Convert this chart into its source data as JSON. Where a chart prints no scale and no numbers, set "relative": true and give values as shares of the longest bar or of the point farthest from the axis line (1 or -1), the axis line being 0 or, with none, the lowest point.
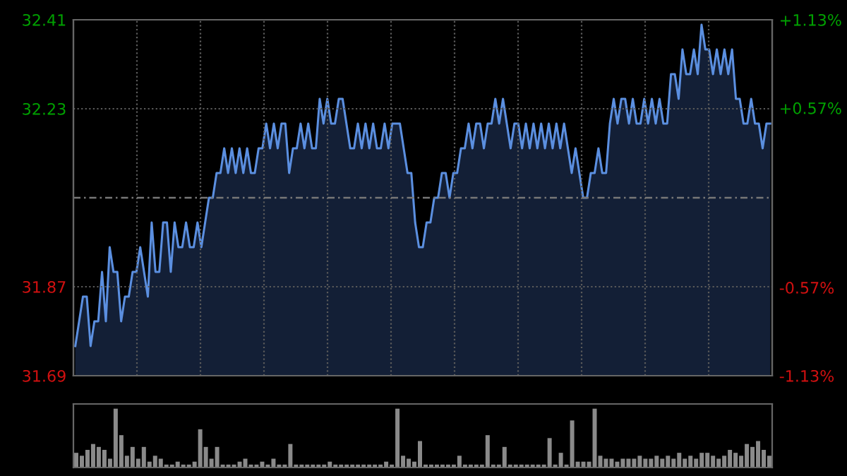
{
  "chart_data": [
    {
      "type": "area",
      "color": "#5b8fe0",
      "grid": true,
      "ylim": [
        31.69,
        32.41
      ],
      "yticks": [
        31.69,
        31.87,
        32.23,
        32.41
      ],
      "categories": [
        null,
        null,
        null,
        null,
        null,
        null,
        null,
        null,
        null,
        null,
        null,
        null,
        null,
        null,
        null,
        null,
        null,
        null,
        null,
        null,
        null,
        null,
        null,
        null,
        null,
        null,
        null,
        null,
        null,
        null,
        null,
        null,
        null,
        null,
        null,
        null,
        null,
        null,
        null,
        null,
        null,
        null,
        null,
        null,
        null,
        null,
        null,
        null,
        null,
        null,
        null,
        null,
        null,
        null,
        null,
        null,
        null,
        null,
        null,
        null,
        null,
        null,
        null,
        null,
        null,
        null,
        null,
        null,
        null,
        null,
        null,
        null,
        null,
        null,
        null,
        null,
        null,
        null,
        null,
        null,
        null,
        null,
        null,
        null,
        null,
        null,
        null,
        null,
        null,
        null,
        null,
        null,
        null,
        null,
        null,
        null,
        null,
        null,
        null,
        null,
        null,
        null,
        null,
        null,
        null,
        null,
        null,
        null,
        null,
        null,
        null,
        null,
        null,
        null,
        null,
        null,
        null,
        null,
        null,
        null,
        null,
        null,
        null,
        null,
        null,
        null,
        null,
        null,
        null,
        null,
        null,
        null,
        null,
        null,
        null,
        null,
        null,
        null,
        null,
        null,
        null,
        null,
        null,
        null,
        null,
        null,
        null,
        null,
        null,
        null,
        null,
        null,
        null,
        null,
        null,
        null,
        null,
        null,
        null,
        null,
        null,
        null,
        null,
        null,
        null,
        null,
        null,
        null,
        null,
        null,
        null,
        null,
        null,
        null,
        null,
        null,
        null,
        null,
        null,
        null,
        null,
        null,
        null
      ],
      "y2lim": [
        -1.13,
        1.13
      ],
      "y2ticks": [
        {
          "value": -1.13,
          "label": "-1.13%"
        },
        {
          "value": -0.57,
          "label": "-0.57%"
        },
        {
          "value": 0.57,
          "label": "+0.57%"
        },
        {
          "value": 1.13,
          "label": "+1.13%"
        }
      ],
      "ref_lines": [
        {
          "axis": "y",
          "value": 32.05,
          "line_style": "dashed"
        }
      ],
      "values": [
        31.75,
        31.8,
        31.85,
        31.85,
        31.75,
        31.8,
        31.8,
        31.9,
        31.8,
        31.95,
        31.9,
        31.9,
        31.8,
        31.85,
        31.85,
        31.9,
        31.9,
        31.95,
        31.9,
        31.85,
        32.0,
        31.9,
        31.9,
        32.0,
        32.0,
        31.9,
        32.0,
        31.95,
        31.95,
        32.0,
        31.95,
        31.95,
        32.0,
        31.95,
        32.0,
        32.05,
        32.05,
        32.1,
        32.1,
        32.15,
        32.1,
        32.15,
        32.1,
        32.15,
        32.1,
        32.15,
        32.1,
        32.1,
        32.15,
        32.15,
        32.2,
        32.15,
        32.2,
        32.15,
        32.2,
        32.2,
        32.1,
        32.15,
        32.15,
        32.2,
        32.15,
        32.2,
        32.15,
        32.15,
        32.25,
        32.2,
        32.25,
        32.2,
        32.2,
        32.25,
        32.25,
        32.2,
        32.15,
        32.15,
        32.2,
        32.15,
        32.2,
        32.15,
        32.2,
        32.15,
        32.15,
        32.2,
        32.15,
        32.2,
        32.2,
        32.2,
        32.15,
        32.1,
        32.1,
        32.0,
        31.95,
        31.95,
        32.0,
        32.0,
        32.05,
        32.05,
        32.1,
        32.1,
        32.05,
        32.1,
        32.1,
        32.15,
        32.15,
        32.2,
        32.15,
        32.2,
        32.2,
        32.15,
        32.2,
        32.2,
        32.25,
        32.2,
        32.25,
        32.2,
        32.15,
        32.2,
        32.2,
        32.15,
        32.2,
        32.15,
        32.2,
        32.15,
        32.2,
        32.15,
        32.2,
        32.15,
        32.2,
        32.15,
        32.2,
        32.15,
        32.1,
        32.15,
        32.1,
        32.05,
        32.05,
        32.1,
        32.1,
        32.15,
        32.1,
        32.1,
        32.2,
        32.25,
        32.2,
        32.25,
        32.25,
        32.2,
        32.25,
        32.2,
        32.2,
        32.25,
        32.2,
        32.25,
        32.2,
        32.25,
        32.2,
        32.2,
        32.3,
        32.3,
        32.25,
        32.35,
        32.3,
        32.3,
        32.35,
        32.3,
        32.4,
        32.35,
        32.35,
        32.3,
        32.35,
        32.3,
        32.35,
        32.3,
        32.35,
        32.25,
        32.25,
        32.2,
        32.2,
        32.25,
        32.2,
        32.2,
        32.15,
        32.2,
        32.2
      ]
    },
    {
      "type": "bar",
      "relative": true,
      "color": "#8a8a8a",
      "categories": [
        null,
        null,
        null,
        null,
        null,
        null,
        null,
        null,
        null,
        null,
        null,
        null,
        null,
        null,
        null,
        null,
        null,
        null,
        null,
        null,
        null,
        null,
        null,
        null,
        null,
        null,
        null,
        null,
        null,
        null,
        null,
        null,
        null,
        null,
        null,
        null,
        null,
        null,
        null,
        null,
        null,
        null,
        null,
        null,
        null,
        null,
        null,
        null,
        null,
        null,
        null,
        null,
        null,
        null,
        null,
        null,
        null,
        null,
        null,
        null,
        null,
        null,
        null,
        null,
        null,
        null,
        null,
        null,
        null,
        null,
        null,
        null,
        null,
        null,
        null,
        null,
        null,
        null,
        null,
        null,
        null,
        null,
        null,
        null,
        null,
        null,
        null,
        null,
        null,
        null,
        null,
        null,
        null,
        null,
        null,
        null,
        null,
        null,
        null,
        null,
        null,
        null,
        null,
        null,
        null,
        null,
        null,
        null,
        null,
        null,
        null,
        null,
        null,
        null,
        null,
        null,
        null,
        null,
        null,
        null,
        null,
        null,
        null,
        null
      ],
      "values": [
        0.25,
        0.2,
        0.3,
        0.4,
        0.35,
        0.3,
        0.15,
        1.0,
        0.55,
        0.2,
        0.35,
        0.15,
        0.35,
        0.1,
        0.2,
        0.15,
        0.05,
        0.05,
        0.1,
        0.05,
        0.05,
        0.1,
        0.65,
        0.35,
        0.15,
        0.35,
        0.05,
        0.05,
        0.05,
        0.1,
        0.15,
        0.05,
        0.05,
        0.1,
        0.05,
        0.15,
        0.05,
        0.05,
        0.4,
        0.05,
        0.05,
        0.05,
        0.05,
        0.05,
        0.05,
        0.1,
        0.05,
        0.05,
        0.05,
        0.05,
        0.05,
        0.05,
        0.05,
        0.05,
        0.05,
        0.1,
        0.05,
        1.0,
        0.2,
        0.15,
        0.1,
        0.45,
        0.05,
        0.05,
        0.05,
        0.05,
        0.05,
        0.05,
        0.2,
        0.05,
        0.05,
        0.05,
        0.05,
        0.55,
        0.05,
        0.05,
        0.35,
        0.05,
        0.05,
        0.05,
        0.05,
        0.05,
        0.05,
        0.05,
        0.5,
        0.05,
        0.25,
        0.05,
        0.8,
        0.1,
        0.1,
        0.1,
        1.0,
        0.2,
        0.15,
        0.15,
        0.1,
        0.15,
        0.15,
        0.15,
        0.2,
        0.15,
        0.15,
        0.2,
        0.15,
        0.2,
        0.15,
        0.25,
        0.15,
        0.2,
        0.15,
        0.25,
        0.25,
        0.2,
        0.15,
        0.2,
        0.3,
        0.25,
        0.2,
        0.4,
        0.35,
        0.45,
        0.3,
        0.2
      ]
    }
  ]
}
